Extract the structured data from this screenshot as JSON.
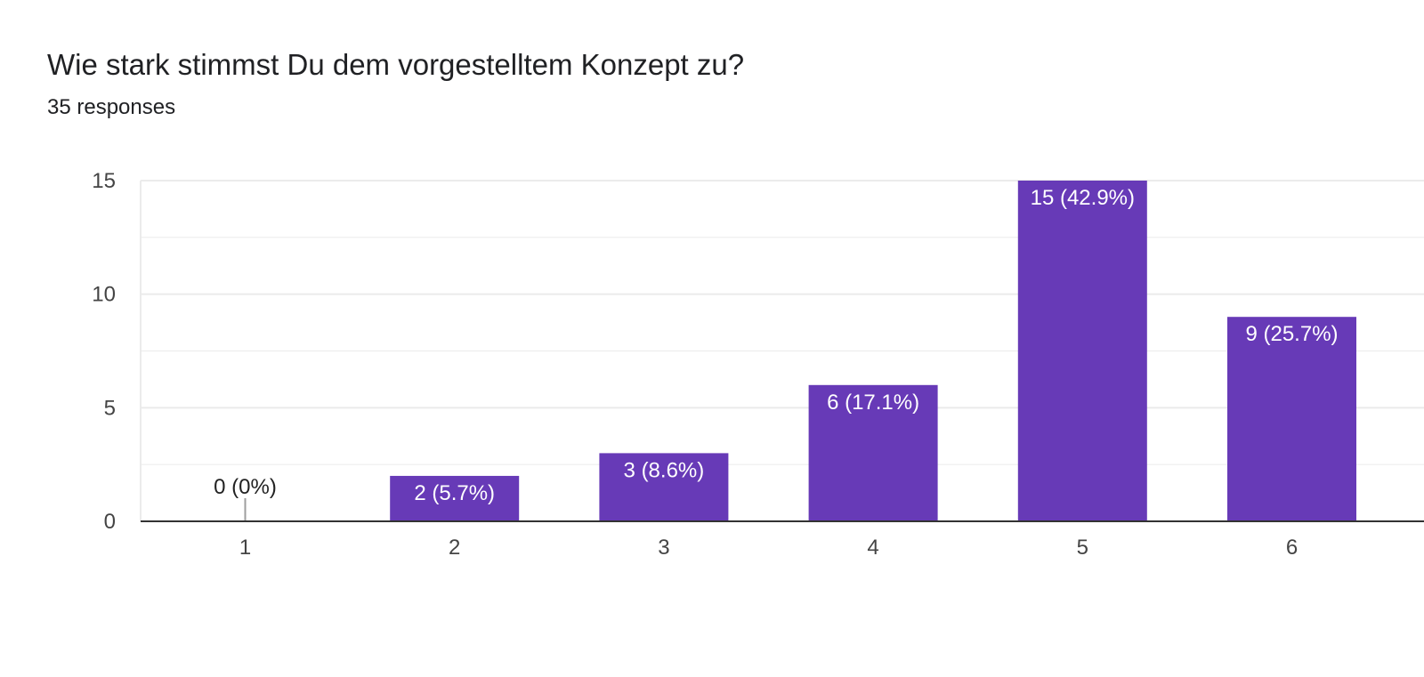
{
  "header": {
    "title": "Wie stark stimmst Du dem vorgestelltem Konzept zu?",
    "responses": "35 responses"
  },
  "colors": {
    "bar": "#673ab7",
    "grid": "#ebebeb",
    "axis": "#333333",
    "label_inside": "#ffffff",
    "label_outside": "#222222",
    "zero_stub": "#9e9e9e"
  },
  "chart_data": {
    "type": "bar",
    "title": "Wie stark stimmst Du dem vorgestelltem Konzept zu?",
    "subtitle": "35 responses",
    "xlabel": "",
    "ylabel": "",
    "categories": [
      "1",
      "2",
      "3",
      "4",
      "5",
      "6"
    ],
    "values": [
      0,
      2,
      3,
      6,
      15,
      9
    ],
    "data_labels": [
      "0 (0%)",
      "2 (5.7%)",
      "3 (8.6%)",
      "6 (17.1%)",
      "15 (42.9%)",
      "9 (25.7%)"
    ],
    "ylim": [
      0,
      15
    ],
    "yticks": [
      0,
      5,
      10,
      15
    ],
    "ytick_labels": [
      "0",
      "5",
      "10",
      "15"
    ],
    "grid": true,
    "legend": "none"
  }
}
